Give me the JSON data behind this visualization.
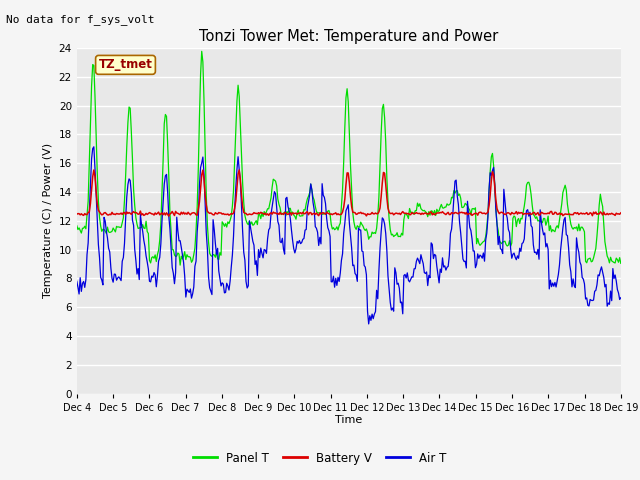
{
  "title": "Tonzi Tower Met: Temperature and Power",
  "subtitle": "No data for f_sys_volt",
  "ylabel": "Temperature (C) / Power (V)",
  "xlabel": "Time",
  "watermark": "TZ_tmet",
  "ylim": [
    0,
    24
  ],
  "yticks": [
    0,
    2,
    4,
    6,
    8,
    10,
    12,
    14,
    16,
    18,
    20,
    22,
    24
  ],
  "xtick_labels": [
    "Dec 4",
    "Dec 5",
    "Dec 6",
    "Dec 7",
    "Dec 8",
    "Dec 9",
    "Dec 10",
    "Dec 11",
    "Dec 12",
    "Dec 13",
    "Dec 14",
    "Dec 15",
    "Dec 16",
    "Dec 17",
    "Dec 18",
    "Dec 19"
  ],
  "bg_color": "#e8e8e8",
  "fig_bg_color": "#f5f5f5",
  "line_colors": {
    "panel_t": "#00dd00",
    "battery_v": "#dd0000",
    "air_t": "#0000dd"
  },
  "legend_labels": [
    "Panel T",
    "Battery V",
    "Air T"
  ],
  "n_points": 480,
  "figsize": [
    6.4,
    4.8
  ],
  "dpi": 100
}
